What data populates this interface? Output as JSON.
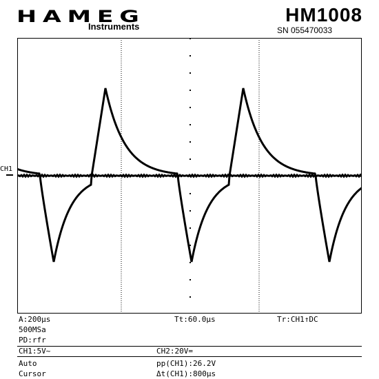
{
  "header": {
    "brand": "HAMEG",
    "brand_sub": "Instruments",
    "model": "HM1008",
    "serial": "SN  055470033"
  },
  "screen": {
    "channel_marker": "CH1",
    "divisions_x": 10,
    "divisions_y": 8,
    "trace_color": "#000000",
    "waveform_ch1": {
      "description_units": "time_us / volts_div",
      "period_us": 800,
      "peak_pp_volts": 26.2
    }
  },
  "status": {
    "timebase": "A:200µs",
    "sample_rate": "500MSa",
    "trigger_time": "Tt:60.0µs",
    "trigger": "Tr:CH1↑DC",
    "peak_detect": "PD:rfr",
    "ch1": "CH1:5V~",
    "ch2": "CH2:20V=",
    "mode": "Auto",
    "measure1": "pp(CH1):26.2V",
    "cursor_label": "Cursor",
    "measure2": "Δt(CH1):800µs"
  }
}
